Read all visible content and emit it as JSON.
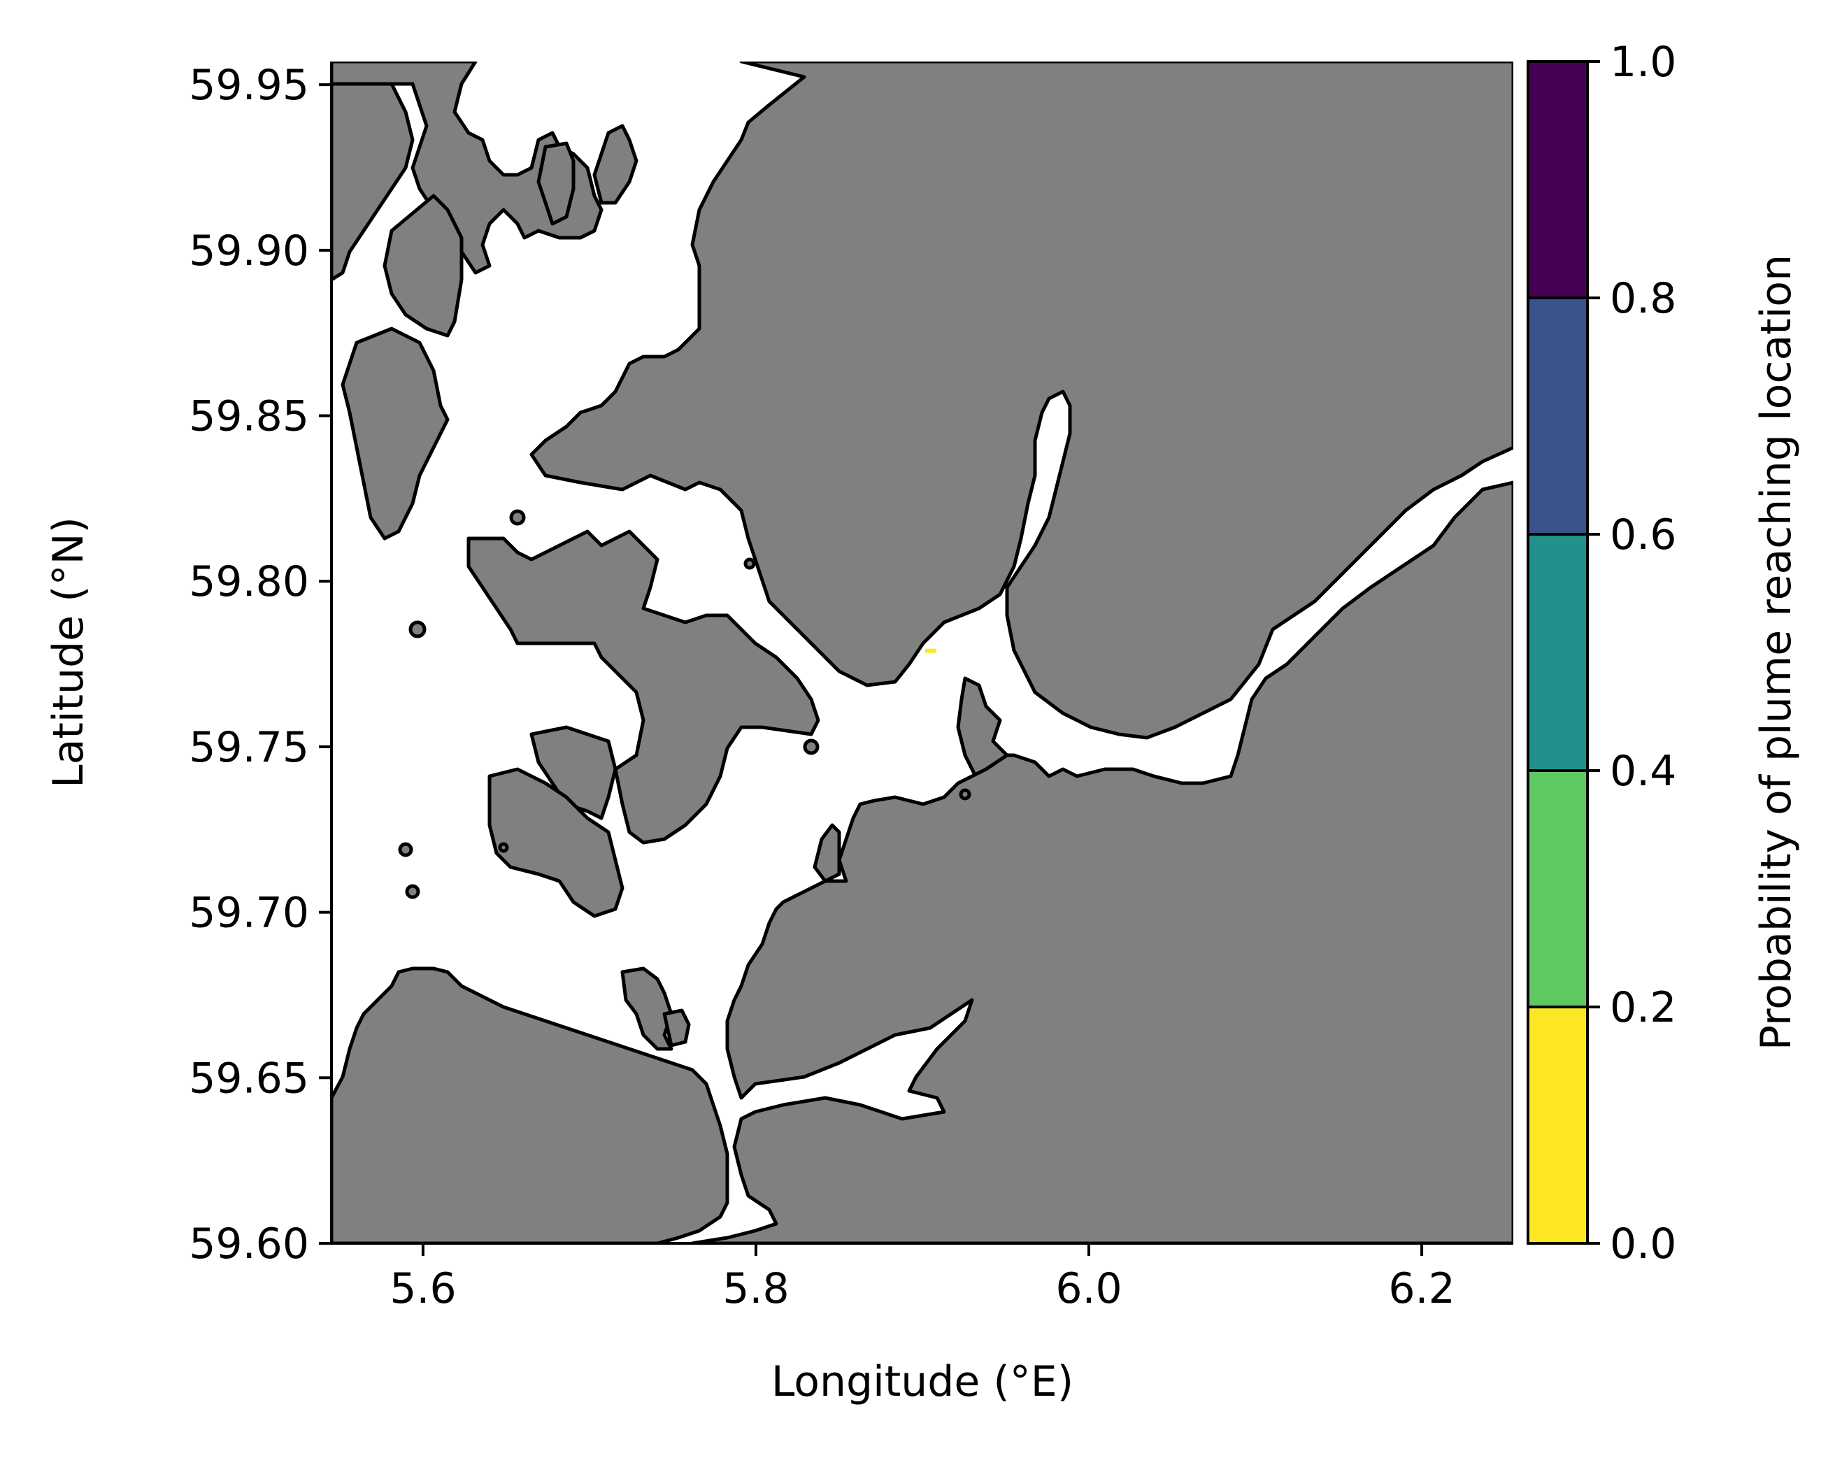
{
  "chart_data": {
    "type": "heatmap",
    "title": "",
    "xlabel": "Longitude (°E)",
    "ylabel": "Latitude (°N)",
    "xlim": [
      5.545,
      6.255
    ],
    "ylim": [
      59.6,
      59.957
    ],
    "x_ticks": [
      5.6,
      5.8,
      6.0,
      6.2
    ],
    "x_tick_labels": [
      "5.6",
      "5.8",
      "6.0",
      "6.2"
    ],
    "y_ticks": [
      59.6,
      59.65,
      59.7,
      59.75,
      59.8,
      59.85,
      59.9,
      59.95
    ],
    "y_tick_labels": [
      "59.60",
      "59.65",
      "59.70",
      "59.75",
      "59.80",
      "59.85",
      "59.90",
      "59.95"
    ],
    "grid": false,
    "land_color": "#808080",
    "water_color": "#ffffff",
    "coastline_color": "#000000",
    "plume_cells": [
      {
        "lon": 5.905,
        "lat": 59.779,
        "probability": 0.1
      }
    ],
    "colorbar": {
      "label": "Probability of plume reaching location",
      "ticks": [
        0.0,
        0.2,
        0.4,
        0.6,
        0.8,
        1.0
      ],
      "tick_labels": [
        "0.0",
        "0.2",
        "0.4",
        "0.6",
        "0.8",
        "1.0"
      ],
      "bins": [
        {
          "from": 0.0,
          "to": 0.2,
          "color": "#fde725"
        },
        {
          "from": 0.2,
          "to": 0.4,
          "color": "#5ec962"
        },
        {
          "from": 0.4,
          "to": 0.6,
          "color": "#21918c"
        },
        {
          "from": 0.6,
          "to": 0.8,
          "color": "#3b528b"
        },
        {
          "from": 0.8,
          "to": 1.0,
          "color": "#440154"
        }
      ]
    }
  }
}
